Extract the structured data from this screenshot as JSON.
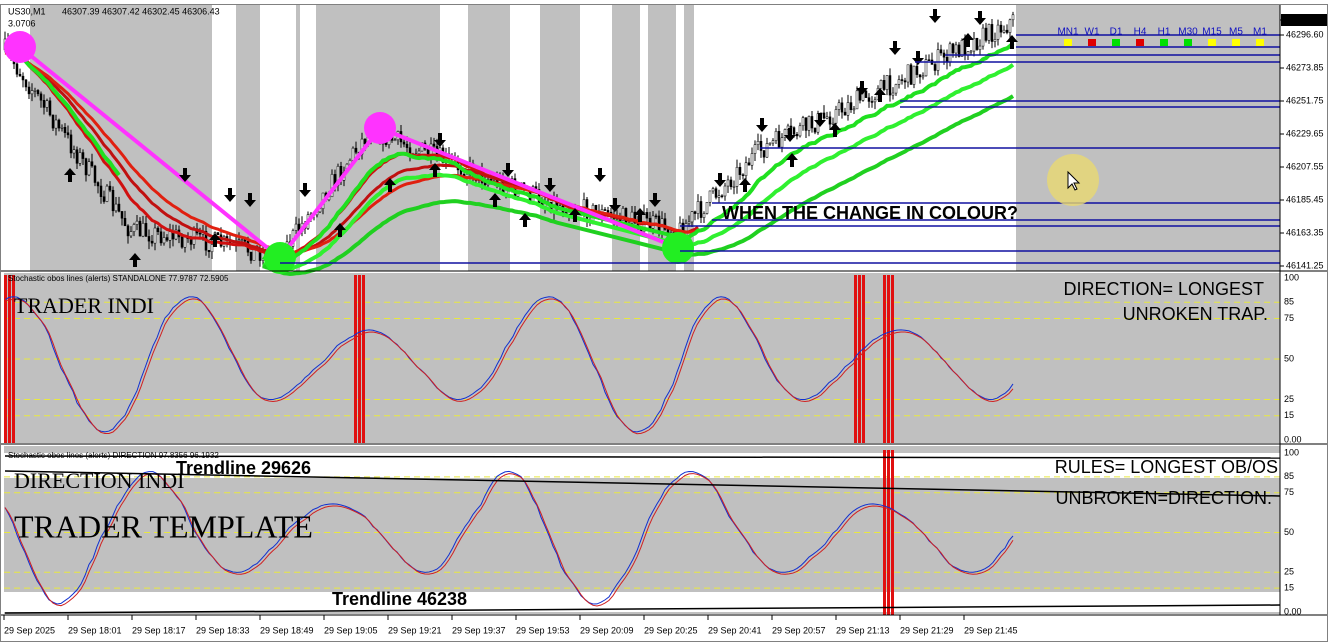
{
  "header": {
    "symbol": "US30,M1",
    "ohlc": "46307.39 46307.42 46302.45 46306.43",
    "spread": "3.0706"
  },
  "price_axis": [
    "46306.43",
    "46296.60",
    "46273.85",
    "46251.75",
    "46229.65",
    "46207.55",
    "46185.45",
    "46163.35",
    "46141.25"
  ],
  "timeframes": [
    {
      "label": "MN1",
      "color": "#ffff00"
    },
    {
      "label": "W1",
      "color": "#e00000"
    },
    {
      "label": "D1",
      "color": "#00e000"
    },
    {
      "label": "H4",
      "color": "#e00000"
    },
    {
      "label": "H1",
      "color": "#00e000"
    },
    {
      "label": "M30",
      "color": "#00e000"
    },
    {
      "label": "M15",
      "color": "#ffff00"
    },
    {
      "label": "M5",
      "color": "#ffff00"
    },
    {
      "label": "M1",
      "color": "#ffff00"
    }
  ],
  "annotation": "WHEN THE CHANGE IN COLOUR?",
  "panel1": {
    "title": "Stochastic obos lines (alerts) STANDALONE 77.9787 72.5905",
    "label": "TRADER INDI",
    "notes": [
      "DIRECTION= LONGEST",
      "UNROKEN TRAP."
    ],
    "axis": [
      "100",
      "85",
      "75",
      "50",
      "25",
      "15",
      "0.00"
    ]
  },
  "panel2": {
    "title": "Stochastic obos lines (alerts) DIRECTION 97.8356 96.1932",
    "label": "DIRECTION INDI",
    "template": "TRADER TEMPLATE",
    "trendline_top": "Trendline 29626",
    "trendline_bottom": "Trendline 46238",
    "notes": [
      "RULES= LONGEST OB/OS",
      "UNBROKEN=DIRECTION."
    ],
    "axis": [
      "100",
      "85",
      "75",
      "50",
      "25",
      "15",
      "0.00"
    ]
  },
  "time_axis": [
    "29 Sep 2025",
    "29 Sep 18:01",
    "29 Sep 18:17",
    "29 Sep 18:33",
    "29 Sep 18:49",
    "29 Sep 19:05",
    "29 Sep 19:21",
    "29 Sep 19:37",
    "29 Sep 19:53",
    "29 Sep 20:09",
    "29 Sep 20:25",
    "29 Sep 20:41",
    "29 Sep 20:57",
    "29 Sep 21:13",
    "29 Sep 21:29",
    "29 Sep 21:45"
  ]
}
